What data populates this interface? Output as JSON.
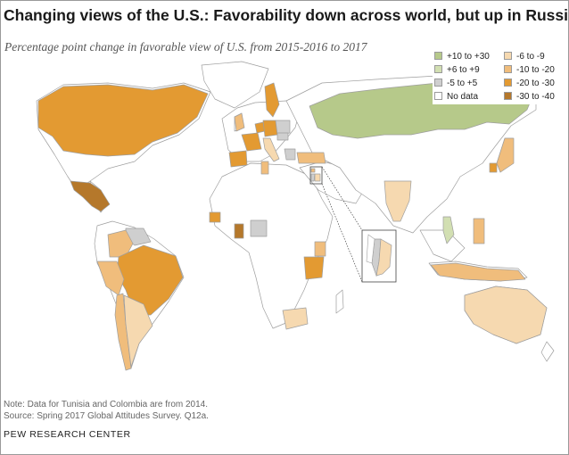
{
  "header": {
    "title": "Changing views of the U.S.: Favorability down across world, but up in Russia",
    "subtitle": "Percentage point change in favorable view of U.S. from 2015-2016 to 2017"
  },
  "legend": {
    "left": [
      {
        "label": "+10 to +30",
        "color": "#b6c98a"
      },
      {
        "label": "+6 to +9",
        "color": "#d2dfb2"
      },
      {
        "label": "-5 to +5",
        "color": "#cfcfcf"
      },
      {
        "label": "No data",
        "color": "#ffffff"
      }
    ],
    "right": [
      {
        "label": "-6 to -9",
        "color": "#f6d9b0"
      },
      {
        "label": "-10 to -20",
        "color": "#f0bd7c"
      },
      {
        "label": "-20 to -30",
        "color": "#e39a32"
      },
      {
        "label": "-30 to -40",
        "color": "#b5782b"
      }
    ]
  },
  "map": {
    "ocean_color": "#ffffff",
    "border_color": "#9e9e9e",
    "no_data_color": "#ffffff",
    "regions": [
      {
        "name": "Russia",
        "category": "+10 to +30"
      },
      {
        "name": "Vietnam",
        "category": "+6 to +9"
      },
      {
        "name": "Nigeria",
        "category": "-5 to +5"
      },
      {
        "name": "Venezuela",
        "category": "-5 to +5"
      },
      {
        "name": "Israel",
        "category": "-5 to +5"
      },
      {
        "name": "Poland",
        "category": "-5 to +5"
      },
      {
        "name": "Hungary",
        "category": "-5 to +5"
      },
      {
        "name": "Greece",
        "category": "-5 to +5"
      },
      {
        "name": "India",
        "category": "-6 to -9"
      },
      {
        "name": "Argentina",
        "category": "-6 to -9"
      },
      {
        "name": "South Africa",
        "category": "-6 to -9"
      },
      {
        "name": "Italy",
        "category": "-6 to -9"
      },
      {
        "name": "Jordan",
        "category": "-6 to -9"
      },
      {
        "name": "Australia",
        "category": "-6 to -9"
      },
      {
        "name": "Tanzania",
        "category": "-20 to -30"
      },
      {
        "name": "Turkey",
        "category": "-10 to -20"
      },
      {
        "name": "Japan",
        "category": "-10 to -20"
      },
      {
        "name": "United Kingdom",
        "category": "-10 to -20"
      },
      {
        "name": "Chile",
        "category": "-10 to -20"
      },
      {
        "name": "Peru",
        "category": "-10 to -20"
      },
      {
        "name": "Kenya",
        "category": "-10 to -20"
      },
      {
        "name": "Indonesia",
        "category": "-10 to -20"
      },
      {
        "name": "Philippines",
        "category": "-10 to -20"
      },
      {
        "name": "Tunisia",
        "category": "-10 to -20"
      },
      {
        "name": "Lebanon",
        "category": "-10 to -20"
      },
      {
        "name": "Colombia",
        "category": "-10 to -20"
      },
      {
        "name": "Canada",
        "category": "-20 to -30"
      },
      {
        "name": "Brazil",
        "category": "-20 to -30"
      },
      {
        "name": "Spain",
        "category": "-20 to -30"
      },
      {
        "name": "Sweden",
        "category": "-20 to -30"
      },
      {
        "name": "Germany",
        "category": "-20 to -30"
      },
      {
        "name": "Netherlands",
        "category": "-20 to -30"
      },
      {
        "name": "France",
        "category": "-20 to -30"
      },
      {
        "name": "Senegal",
        "category": "-20 to -30"
      },
      {
        "name": "South Korea",
        "category": "-20 to -30"
      },
      {
        "name": "Mexico",
        "category": "-30 to -40"
      },
      {
        "name": "Ghana",
        "category": "-30 to -40"
      }
    ]
  },
  "notes": {
    "line1": "Note: Data for Tunisia and Colombia are from 2014.",
    "line2": "Source: Spring 2017 Global Attitudes Survey. Q12a."
  },
  "logo": "PEW RESEARCH CENTER"
}
